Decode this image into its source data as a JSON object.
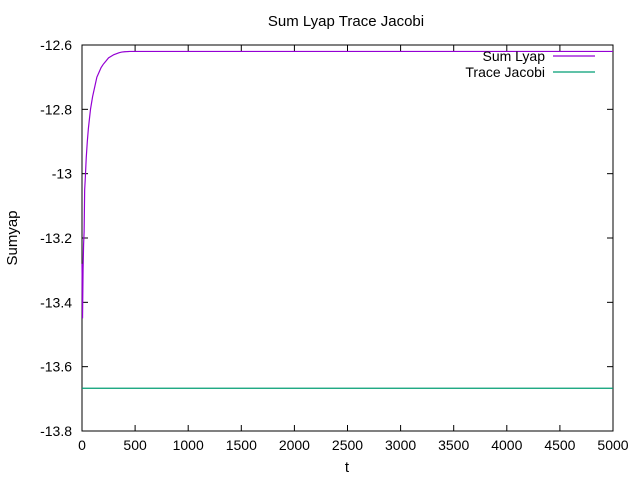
{
  "chart_data": {
    "type": "line",
    "title": "Sum Lyap Trace Jacobi",
    "xlabel": "t",
    "ylabel": "Sumyap",
    "xlim": [
      0,
      5000
    ],
    "ylim": [
      -13.8,
      -12.6
    ],
    "xticks": [
      "0",
      "500",
      "1000",
      "1500",
      "2000",
      "2500",
      "3000",
      "3500",
      "4000",
      "4500",
      "5000"
    ],
    "xtick_values": [
      0,
      500,
      1000,
      1500,
      2000,
      2500,
      3000,
      3500,
      4000,
      4500,
      5000
    ],
    "yticks": [
      "-12.6",
      "-12.8",
      "-13",
      "-13.2",
      "-13.4",
      "-13.6",
      "-13.8"
    ],
    "ytick_values": [
      -12.6,
      -12.8,
      -13.0,
      -13.2,
      -13.4,
      -13.6,
      -13.8
    ],
    "grid": false,
    "legend_position": "top-right",
    "series": [
      {
        "name": "Sum Lyap",
        "color": "#9400d3",
        "x": [
          0,
          5,
          10,
          15,
          20,
          25,
          30,
          40,
          50,
          60,
          70,
          80,
          90,
          100,
          120,
          140,
          160,
          180,
          200,
          225,
          250,
          275,
          300,
          325,
          350,
          375,
          400,
          450,
          500,
          1000,
          2000,
          3000,
          4000,
          5000
        ],
        "y": [
          -13.28,
          -13.45,
          -13.3,
          -13.22,
          -13.18,
          -13.05,
          -13.02,
          -12.95,
          -12.9,
          -12.86,
          -12.83,
          -12.8,
          -12.78,
          -12.76,
          -12.73,
          -12.7,
          -12.685,
          -12.67,
          -12.66,
          -12.65,
          -12.64,
          -12.635,
          -12.63,
          -12.627,
          -12.624,
          -12.622,
          -12.621,
          -12.62,
          -12.62,
          -12.62,
          -12.62,
          -12.62,
          -12.62,
          -12.62
        ]
      },
      {
        "name": "Trace Jacobi",
        "color": "#009e73",
        "x": [
          0,
          5000
        ],
        "y": [
          -13.667,
          -13.667
        ]
      }
    ]
  }
}
